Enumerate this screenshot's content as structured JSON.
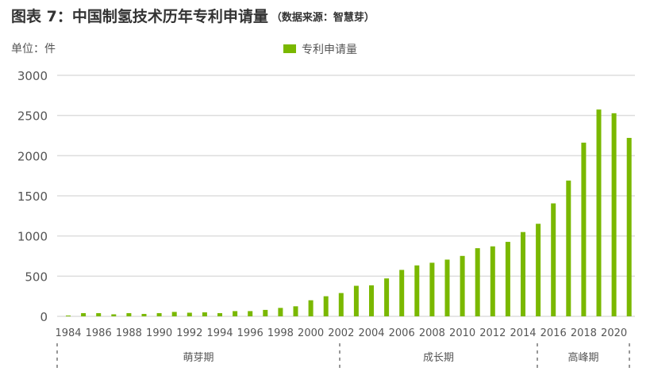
{
  "chart_data": {
    "type": "bar",
    "title": "图表 7：中国制氢技术历年专利申请量",
    "source": "（数据来源：智慧芽）",
    "unit_label": "单位：件",
    "legend": {
      "entries": [
        "专利申请量"
      ],
      "placement": "top-center"
    },
    "colors": {
      "bar": "#7ab800",
      "grid": "#dddddd",
      "text": "#555555"
    },
    "grid": true,
    "ylim": [
      0,
      3000
    ],
    "yticks": [
      "0",
      "500",
      "1000",
      "1500",
      "2000",
      "2500",
      "3000"
    ],
    "xticks": [
      "1984",
      "1986",
      "1988",
      "1990",
      "1992",
      "1994",
      "1996",
      "1998",
      "2000",
      "2002",
      "2004",
      "2006",
      "2008",
      "2010",
      "2012",
      "2014",
      "2016",
      "2018",
      "2020"
    ],
    "categories": [
      1984,
      1985,
      1986,
      1987,
      1988,
      1989,
      1990,
      1991,
      1992,
      1993,
      1994,
      1995,
      1996,
      1997,
      1998,
      1999,
      2000,
      2001,
      2002,
      2003,
      2004,
      2005,
      2006,
      2007,
      2008,
      2009,
      2010,
      2011,
      2012,
      2013,
      2014,
      2015,
      2016,
      2017,
      2018,
      2019,
      2020,
      2021
    ],
    "series": [
      {
        "name": "专利申请量",
        "values": [
          10,
          40,
          40,
          25,
          40,
          30,
          40,
          55,
          45,
          50,
          40,
          65,
          65,
          80,
          105,
          125,
          200,
          250,
          290,
          380,
          386,
          472,
          578,
          634,
          667,
          706,
          752,
          848,
          871,
          927,
          1049,
          1152,
          1406,
          1690,
          2162,
          2574,
          2528,
          2221
        ]
      }
    ],
    "phases": [
      {
        "label": "萌芽期",
        "from": 1984,
        "to": 2002
      },
      {
        "label": "成长期",
        "from": 2002,
        "to": 2015
      },
      {
        "label": "高峰期",
        "from": 2015,
        "to": 2021
      }
    ]
  }
}
